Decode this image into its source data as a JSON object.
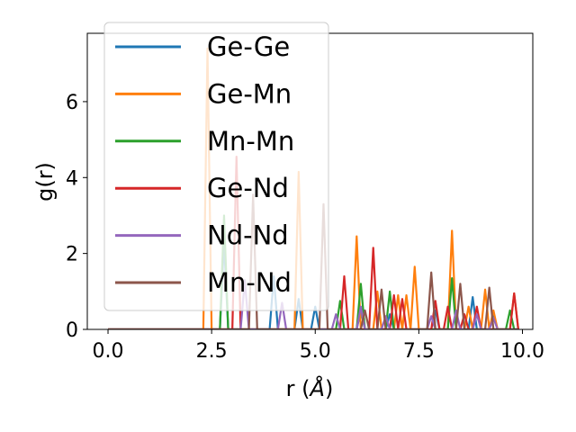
{
  "chart_data": {
    "type": "line",
    "xlabel": "r (",
    "xlabel_symbol": "Å",
    "xlabel_close": ")",
    "ylabel": "g(r)",
    "xlim": [
      -0.5,
      10.25
    ],
    "ylim": [
      0,
      7.8
    ],
    "xticks": [
      0.0,
      2.5,
      5.0,
      7.5,
      10.0
    ],
    "xtick_labels": [
      "0.0",
      "2.5",
      "5.0",
      "7.5",
      "10.0"
    ],
    "yticks": [
      0,
      2,
      4,
      6
    ],
    "ytick_labels": [
      "0",
      "2",
      "4",
      "6"
    ],
    "grid": false,
    "legend_placement": "upper-left",
    "x_step": 0.1,
    "x_range": [
      0.0,
      9.9
    ],
    "series": [
      {
        "name": "Ge-Ge",
        "color": "#1f77b4",
        "peaks": [
          [
            2.8,
            2.3
          ],
          [
            4.0,
            1.4
          ],
          [
            4.6,
            0.8
          ],
          [
            5.0,
            0.6
          ],
          [
            6.1,
            0.5
          ],
          [
            6.8,
            0.4
          ],
          [
            7.9,
            0.5
          ],
          [
            8.8,
            0.85
          ],
          [
            9.3,
            0.4
          ]
        ]
      },
      {
        "name": "Ge-Mn",
        "color": "#ff7f0e",
        "peaks": [
          [
            2.4,
            7.4
          ],
          [
            4.6,
            4.15
          ],
          [
            6.0,
            2.45
          ],
          [
            6.5,
            1.0
          ],
          [
            7.0,
            0.9
          ],
          [
            7.2,
            0.9
          ],
          [
            7.4,
            1.65
          ],
          [
            8.3,
            2.6
          ],
          [
            8.7,
            0.6
          ],
          [
            9.1,
            1.05
          ],
          [
            9.3,
            0.5
          ],
          [
            9.8,
            0.95
          ]
        ]
      },
      {
        "name": "Mn-Mn",
        "color": "#2ca02c",
        "peaks": [
          [
            2.8,
            3.0
          ],
          [
            5.6,
            0.75
          ],
          [
            6.1,
            1.2
          ],
          [
            6.8,
            1.0
          ],
          [
            8.3,
            1.35
          ],
          [
            9.7,
            0.5
          ]
        ]
      },
      {
        "name": "Ge-Nd",
        "color": "#d62728",
        "peaks": [
          [
            3.1,
            4.55
          ],
          [
            5.7,
            1.4
          ],
          [
            6.4,
            2.15
          ],
          [
            6.9,
            0.9
          ],
          [
            7.1,
            0.8
          ],
          [
            7.9,
            0.75
          ],
          [
            8.2,
            0.6
          ],
          [
            8.6,
            0.4
          ],
          [
            8.9,
            0.6
          ],
          [
            9.8,
            0.95
          ]
        ]
      },
      {
        "name": "Nd-Nd",
        "color": "#9467bd",
        "peaks": [
          [
            3.3,
            1.3
          ],
          [
            4.2,
            0.7
          ],
          [
            5.5,
            0.4
          ],
          [
            6.1,
            0.6
          ],
          [
            6.7,
            0.35
          ],
          [
            7.8,
            0.35
          ],
          [
            8.4,
            0.5
          ],
          [
            8.9,
            0.4
          ],
          [
            9.3,
            0.3
          ]
        ]
      },
      {
        "name": "Mn-Nd",
        "color": "#8c564b",
        "peaks": [
          [
            3.5,
            3.55
          ],
          [
            5.2,
            3.3
          ],
          [
            6.2,
            0.5
          ],
          [
            6.6,
            1.05
          ],
          [
            7.8,
            1.5
          ],
          [
            8.5,
            1.2
          ],
          [
            9.2,
            1.1
          ]
        ]
      }
    ]
  }
}
